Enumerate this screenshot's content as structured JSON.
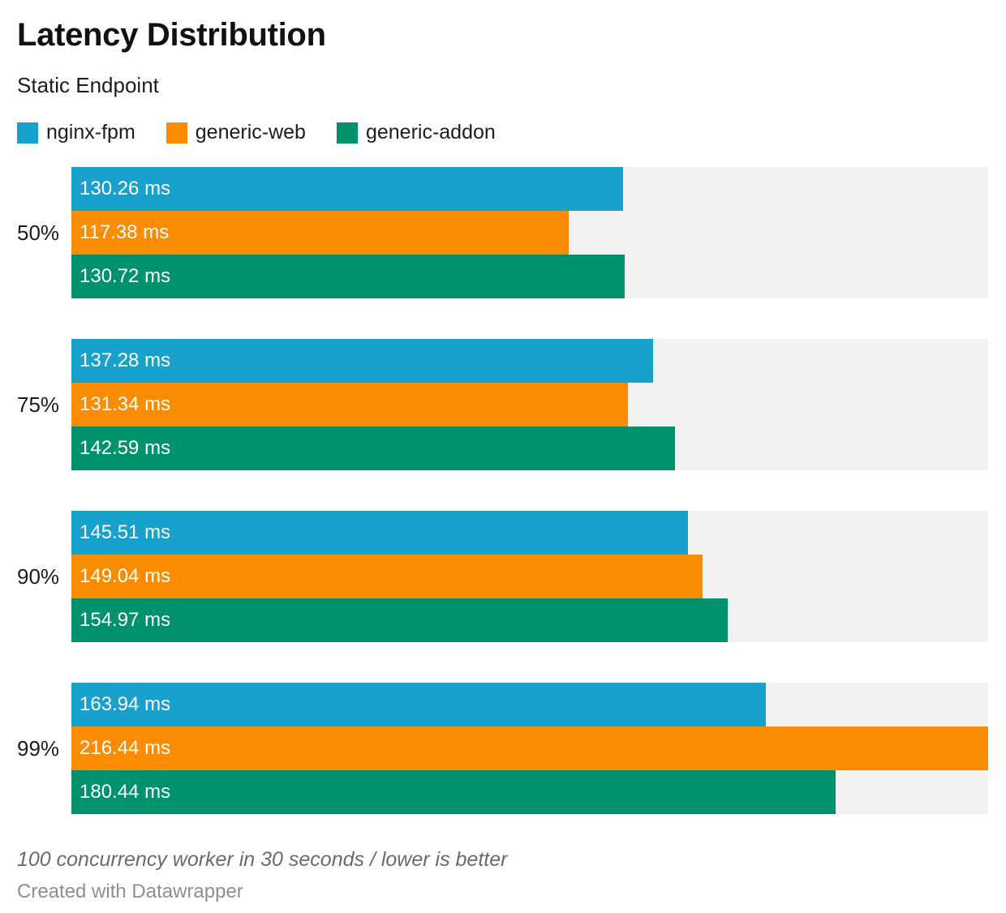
{
  "header": {
    "title": "Latency Distribution",
    "subtitle": "Static Endpoint"
  },
  "colors": {
    "nginx_fpm": "#18A1CD",
    "generic_web": "#F98C00",
    "generic_addon": "#00916F",
    "track": "#F2F2F2"
  },
  "legend": {
    "items": [
      {
        "label": "nginx-fpm",
        "color": "#18A1CD"
      },
      {
        "label": "generic-web",
        "color": "#F98C00"
      },
      {
        "label": "generic-addon",
        "color": "#00916F"
      }
    ]
  },
  "chart_data": {
    "type": "bar",
    "orientation": "horizontal",
    "title": "Latency Distribution",
    "subtitle": "Static Endpoint",
    "categories": [
      "50%",
      "75%",
      "90%",
      "99%"
    ],
    "series": [
      {
        "name": "nginx-fpm",
        "color": "#18A1CD",
        "values": [
          130.26,
          137.28,
          145.51,
          163.94
        ],
        "labels": [
          "130.26 ms",
          "137.28 ms",
          "145.51 ms",
          "163.94 ms"
        ]
      },
      {
        "name": "generic-web",
        "color": "#F98C00",
        "values": [
          117.38,
          131.34,
          149.04,
          216.44
        ],
        "labels": [
          "117.38 ms",
          "131.34 ms",
          "149.04 ms",
          "216.44 ms"
        ]
      },
      {
        "name": "generic-addon",
        "color": "#00916F",
        "values": [
          130.72,
          142.59,
          154.97,
          180.44
        ],
        "labels": [
          "130.72 ms",
          "142.59 ms",
          "154.97 ms",
          "180.44 ms"
        ]
      }
    ],
    "unit": "ms",
    "xlim": [
      0,
      216.44
    ],
    "value_labels": "inside-start",
    "legend_position": "top",
    "grid": false
  },
  "footer": {
    "note": "100 concurrency worker in 30 seconds / lower is better",
    "credit": "Created with Datawrapper"
  }
}
